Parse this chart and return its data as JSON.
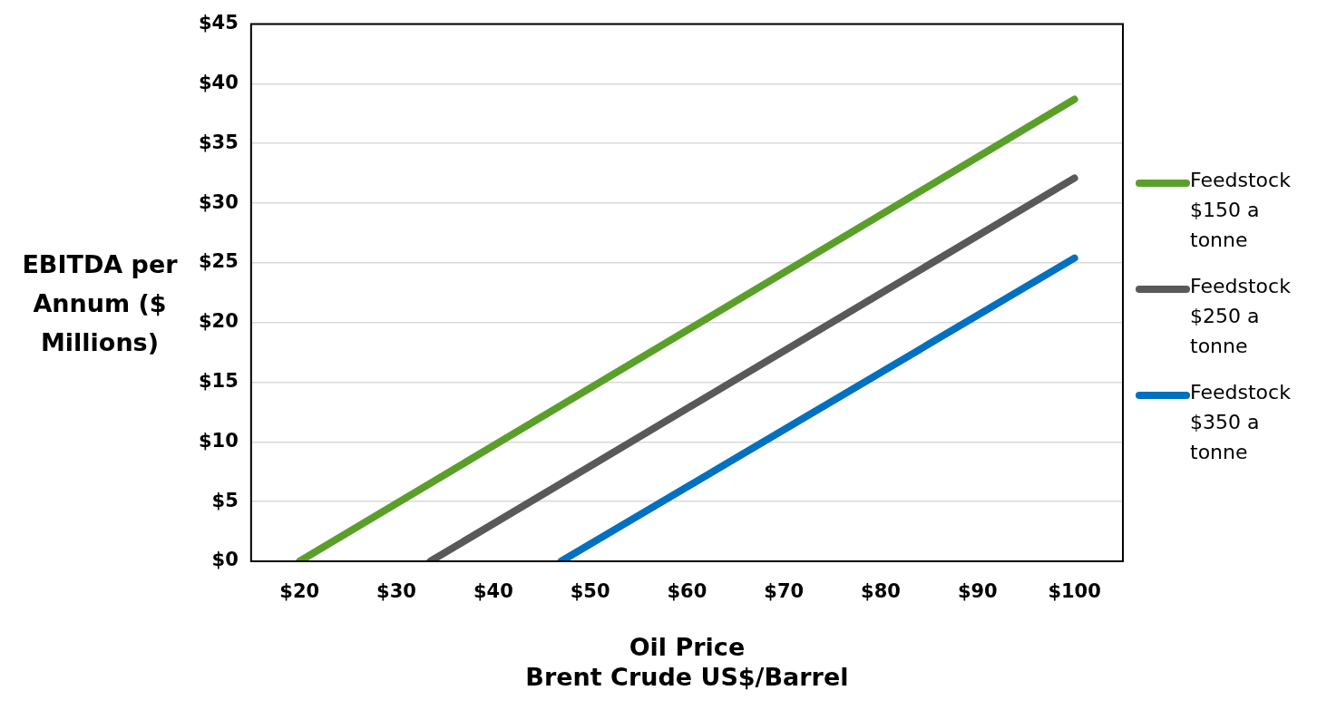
{
  "chart_data": {
    "type": "line",
    "xlabel": "Oil Price\nBrent Crude US$/Barrel",
    "ylabel": "EBITDA per Annum ($ Millions)",
    "series": [
      {
        "name": "Feedstock $150 a tonne",
        "color": "#5b9f2b",
        "x": [
          20,
          100
        ],
        "values": [
          0,
          38.7
        ]
      },
      {
        "name": "Feedstock $250 a tonne",
        "color": "#595959",
        "x": [
          33.5,
          100
        ],
        "values": [
          0,
          32.1
        ]
      },
      {
        "name": "Feedstock $350 a tonne",
        "color": "#0070c0",
        "x": [
          47,
          100
        ],
        "values": [
          0,
          25.4
        ]
      }
    ],
    "xlim": [
      15,
      105
    ],
    "xticks": [
      {
        "value": 20,
        "label": "$20"
      },
      {
        "value": 30,
        "label": "$30"
      },
      {
        "value": 40,
        "label": "$40"
      },
      {
        "value": 50,
        "label": "$50"
      },
      {
        "value": 60,
        "label": "$60"
      },
      {
        "value": 70,
        "label": "$70"
      },
      {
        "value": 80,
        "label": "$80"
      },
      {
        "value": 90,
        "label": "$90"
      },
      {
        "value": 100,
        "label": "$100"
      }
    ],
    "ylim": [
      0,
      45
    ],
    "yticks": [
      {
        "value": 0,
        "label": "$0"
      },
      {
        "value": 5,
        "label": "$5"
      },
      {
        "value": 10,
        "label": "$10"
      },
      {
        "value": 15,
        "label": "$15"
      },
      {
        "value": 20,
        "label": "$20"
      },
      {
        "value": 25,
        "label": "$25"
      },
      {
        "value": 30,
        "label": "$30"
      },
      {
        "value": 35,
        "label": "$35"
      },
      {
        "value": 40,
        "label": "$40"
      },
      {
        "value": 45,
        "label": "$45"
      }
    ],
    "grid": "y",
    "legend": "right",
    "marker": "none",
    "line_style": "solid"
  }
}
